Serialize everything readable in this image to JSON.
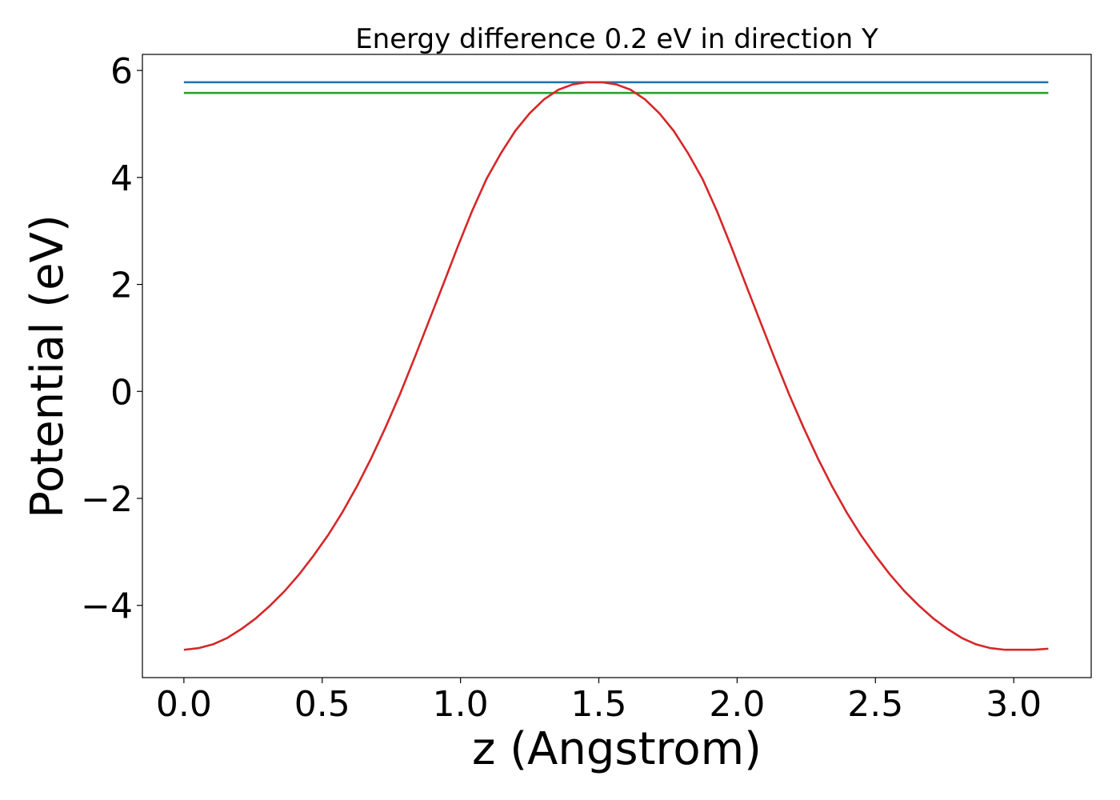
{
  "chart_data": {
    "type": "line",
    "title": "Energy difference 0.2 eV in direction Y",
    "xlabel": "z (Angstrom)",
    "ylabel": "Potential (eV)",
    "xlim": [
      -0.15,
      3.28
    ],
    "ylim": [
      -5.35,
      6.3
    ],
    "xticks": [
      0.0,
      0.5,
      1.0,
      1.5,
      2.0,
      2.5,
      3.0
    ],
    "xtick_labels": [
      "0.0",
      "0.5",
      "1.0",
      "1.5",
      "2.0",
      "2.5",
      "3.0"
    ],
    "yticks": [
      -4,
      -2,
      0,
      2,
      4,
      6
    ],
    "ytick_labels": [
      "−4",
      "−2",
      "0",
      "2",
      "4",
      "6"
    ],
    "grid": false,
    "series": [
      {
        "color": "#1f77b4",
        "x": [
          0.0,
          3.125
        ],
        "y": [
          5.78,
          5.78
        ]
      },
      {
        "color": "#2ca02c",
        "x": [
          0.0,
          3.125
        ],
        "y": [
          5.58,
          5.58
        ]
      },
      {
        "color": "#d62728",
        "x": [
          0.0,
          0.0521,
          0.1042,
          0.1563,
          0.2083,
          0.2604,
          0.3125,
          0.3646,
          0.4167,
          0.4688,
          0.5208,
          0.5729,
          0.625,
          0.6771,
          0.7292,
          0.7813,
          0.8333,
          0.8854,
          0.9375,
          0.9896,
          1.0417,
          1.0938,
          1.1458,
          1.1979,
          1.25,
          1.3021,
          1.3542,
          1.4063,
          1.4583,
          1.5104,
          1.5625,
          1.6146,
          1.6667,
          1.7188,
          1.7708,
          1.8229,
          1.875,
          1.9271,
          1.9792,
          2.0313,
          2.0833,
          2.1354,
          2.1875,
          2.2396,
          2.2917,
          2.3438,
          2.3958,
          2.4479,
          2.5,
          2.5521,
          2.6042,
          2.6563,
          2.7083,
          2.7604,
          2.8125,
          2.8646,
          2.9167,
          2.9688,
          3.0208,
          3.0729,
          3.125
        ],
        "y": [
          -4.83,
          -4.8,
          -4.73,
          -4.61,
          -4.44,
          -4.24,
          -4.0,
          -3.73,
          -3.42,
          -3.07,
          -2.69,
          -2.26,
          -1.78,
          -1.25,
          -0.67,
          -0.05,
          0.62,
          1.31,
          2.0,
          2.7,
          3.37,
          3.97,
          4.45,
          4.87,
          5.2,
          5.46,
          5.64,
          5.74,
          5.78,
          5.78,
          5.74,
          5.64,
          5.46,
          5.2,
          4.87,
          4.45,
          3.97,
          3.37,
          2.7,
          2.0,
          1.31,
          0.62,
          -0.05,
          -0.67,
          -1.25,
          -1.78,
          -2.26,
          -2.69,
          -3.07,
          -3.42,
          -3.73,
          -4.0,
          -4.24,
          -4.44,
          -4.61,
          -4.73,
          -4.8,
          -4.83,
          -4.83,
          -4.83,
          -4.81
        ]
      }
    ]
  }
}
